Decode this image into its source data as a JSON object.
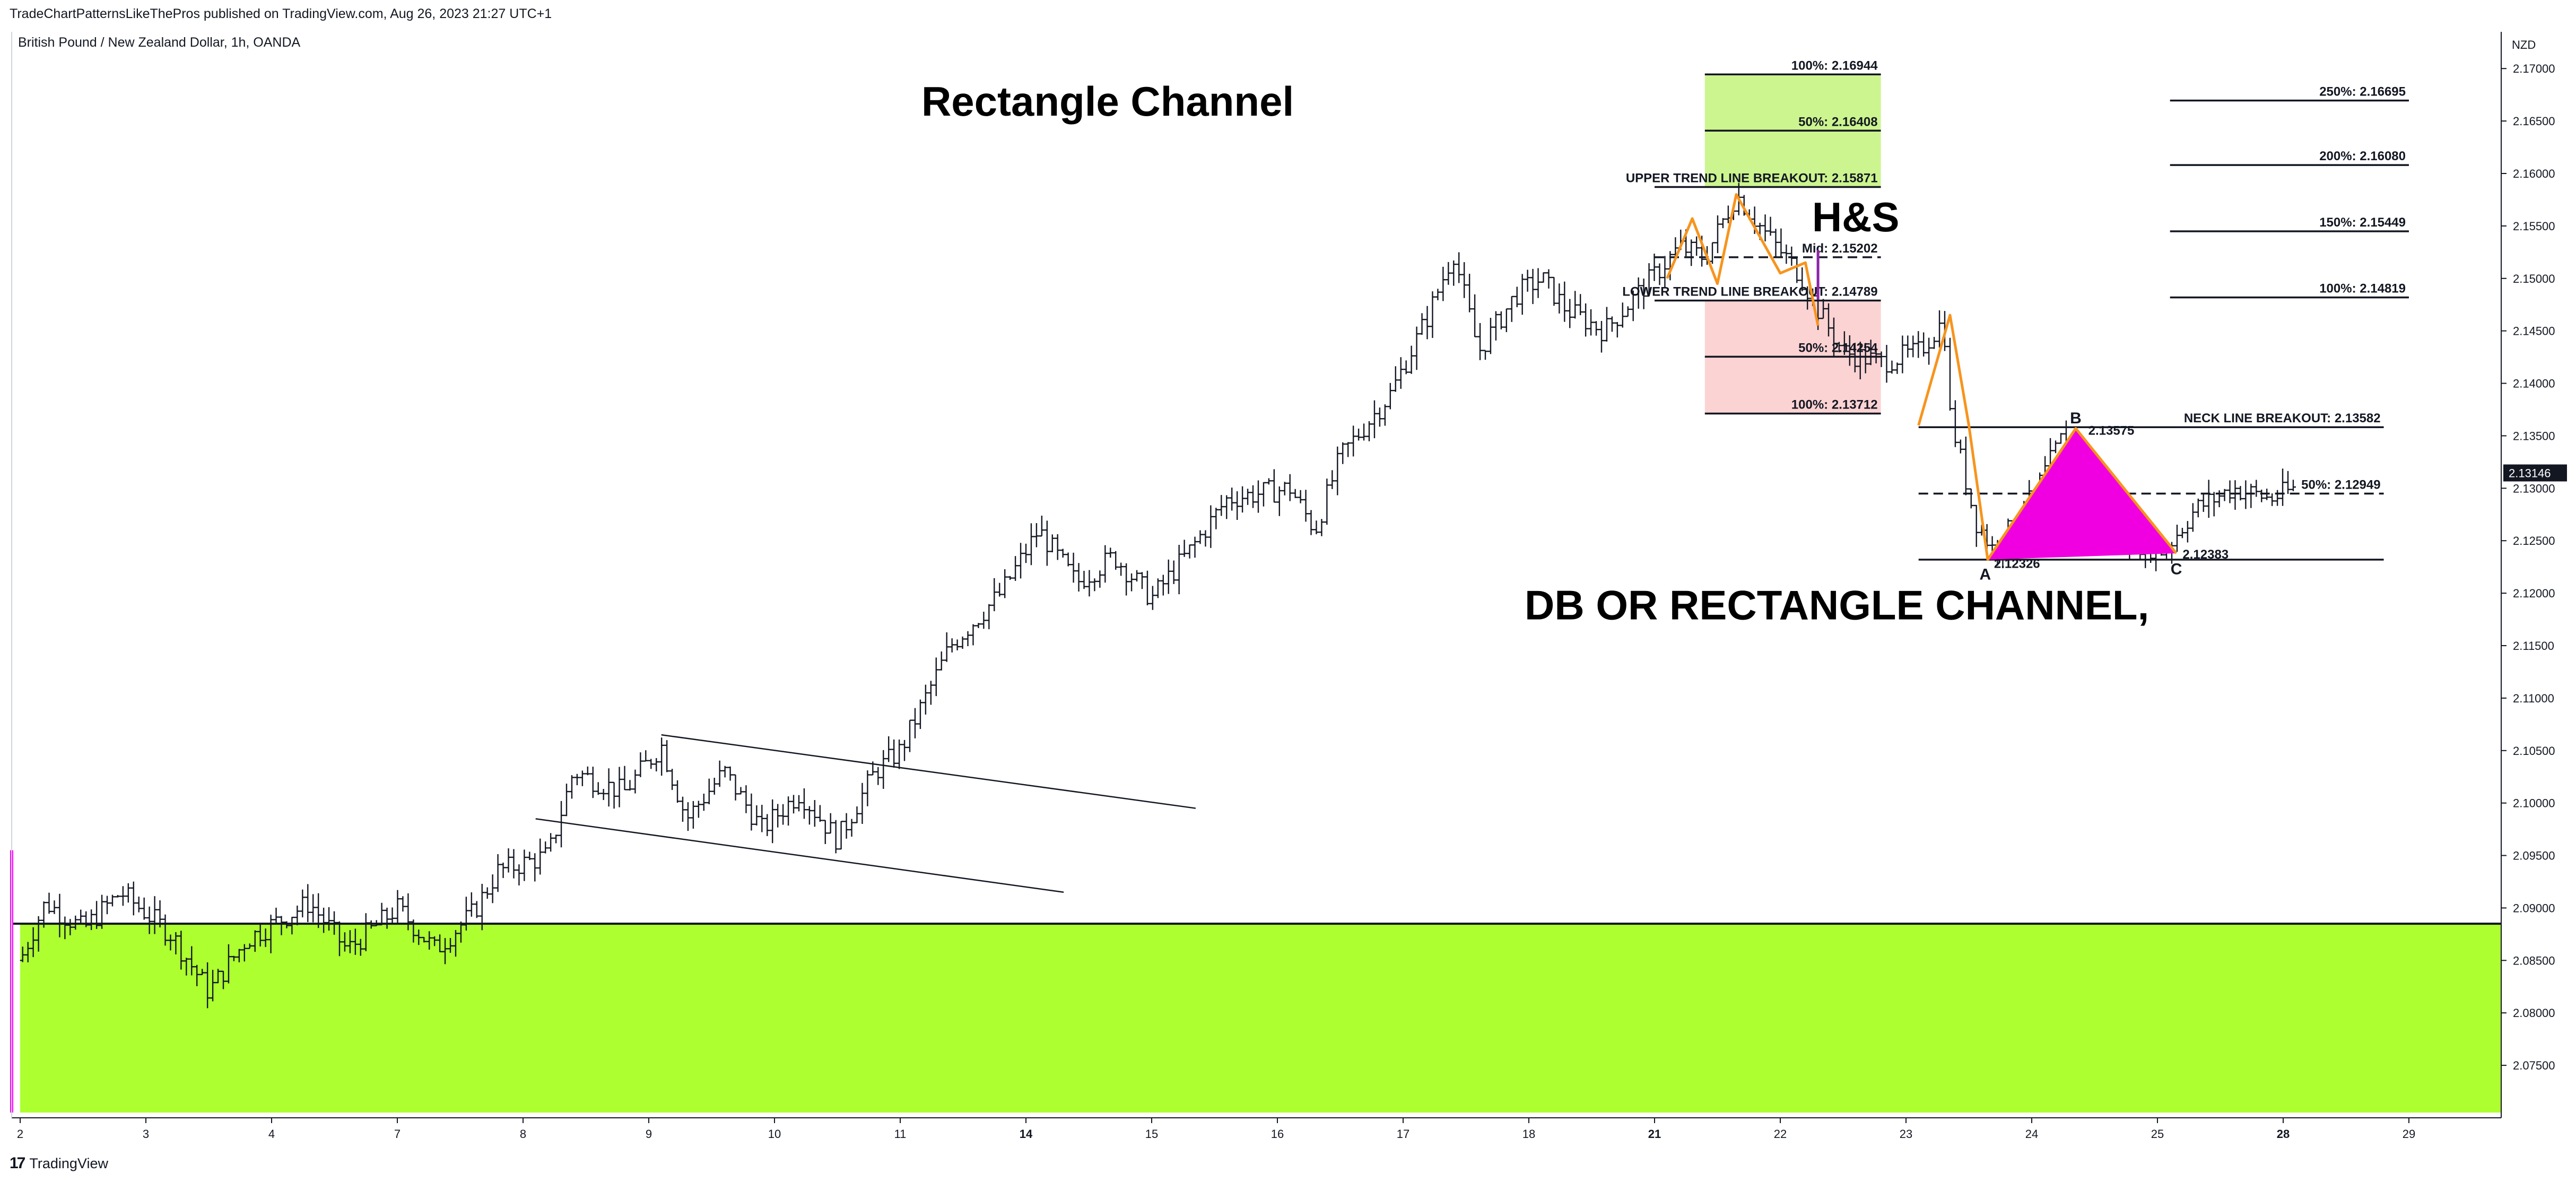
{
  "header": {
    "attribution": "TradeChartPatternsLikeThePros published on TradingView.com, Aug 26, 2023 21:27 UTC+1",
    "symbol": "British Pound / New Zealand Dollar, 1h, OANDA",
    "footer_brand": "TradingView",
    "currency": "NZD",
    "last_price": "2.13146"
  },
  "colors": {
    "support_zone": "#adff2f",
    "target_zone": "#ccf58f",
    "stop_zone": "#fcd3d3",
    "pattern_line": "#f7941d",
    "triangle_fill": "#f000e0",
    "marker": "#ff00ff",
    "candles": "#131722"
  },
  "chart_data": {
    "type": "ohlc",
    "title": "",
    "y_axis": {
      "min": 2.07,
      "max": 2.1735,
      "ticks": [
        "2.17000",
        "2.16500",
        "2.16000",
        "2.15500",
        "2.15000",
        "2.14500",
        "2.14000",
        "2.13500",
        "2.13000",
        "2.12500",
        "2.12000",
        "2.11500",
        "2.11000",
        "2.10500",
        "2.10000",
        "2.09500",
        "2.09000",
        "2.08500",
        "2.08000",
        "2.07500"
      ]
    },
    "x_axis": {
      "ticks": [
        {
          "label": "2",
          "d": 0
        },
        {
          "label": "3",
          "d": 1
        },
        {
          "label": "4",
          "d": 2
        },
        {
          "label": "7",
          "d": 3
        },
        {
          "label": "8",
          "d": 4
        },
        {
          "label": "9",
          "d": 5
        },
        {
          "label": "10",
          "d": 6
        },
        {
          "label": "11",
          "d": 7
        },
        {
          "label": "14",
          "d": 8
        },
        {
          "label": "15",
          "d": 9
        },
        {
          "label": "16",
          "d": 10
        },
        {
          "label": "17",
          "d": 11
        },
        {
          "label": "18",
          "d": 12
        },
        {
          "label": "21",
          "d": 13
        },
        {
          "label": "22",
          "d": 14
        },
        {
          "label": "23",
          "d": 15
        },
        {
          "label": "24",
          "d": 16
        },
        {
          "label": "25",
          "d": 17
        },
        {
          "label": "28",
          "d": 18
        },
        {
          "label": "29",
          "d": 19
        }
      ],
      "bold": [
        "14",
        "21",
        "28"
      ]
    },
    "price_path": [
      [
        0.0,
        2.085
      ],
      [
        0.2,
        2.0905
      ],
      [
        0.5,
        2.088
      ],
      [
        0.8,
        2.0915
      ],
      [
        1.2,
        2.0875
      ],
      [
        1.5,
        2.082
      ],
      [
        1.8,
        2.087
      ],
      [
        2.3,
        2.0905
      ],
      [
        2.6,
        2.086
      ],
      [
        3.0,
        2.09
      ],
      [
        3.3,
        2.086
      ],
      [
        3.6,
        2.0895
      ],
      [
        3.8,
        2.0935
      ],
      [
        4.2,
        2.095
      ],
      [
        4.4,
        2.103
      ],
      [
        4.8,
        2.101
      ],
      [
        5.1,
        2.1055
      ],
      [
        5.3,
        2.0985
      ],
      [
        5.6,
        2.103
      ],
      [
        5.9,
        2.0975
      ],
      [
        6.2,
        2.101
      ],
      [
        6.5,
        2.0965
      ],
      [
        6.8,
        2.103
      ],
      [
        7.0,
        2.105
      ],
      [
        7.4,
        2.115
      ],
      [
        7.8,
        2.12
      ],
      [
        8.1,
        2.126
      ],
      [
        8.4,
        2.121
      ],
      [
        8.7,
        2.1235
      ],
      [
        9.0,
        2.1195
      ],
      [
        9.3,
        2.124
      ],
      [
        9.6,
        2.129
      ],
      [
        10.1,
        2.13
      ],
      [
        10.3,
        2.126
      ],
      [
        10.5,
        2.133
      ],
      [
        10.9,
        2.139
      ],
      [
        11.2,
        2.1465
      ],
      [
        11.4,
        2.1525
      ],
      [
        11.6,
        2.143
      ],
      [
        11.9,
        2.1485
      ],
      [
        12.1,
        2.15
      ],
      [
        12.3,
        2.147
      ],
      [
        12.6,
        2.145
      ],
      [
        12.9,
        2.149
      ],
      [
        13.2,
        2.153
      ],
      [
        13.4,
        2.152
      ],
      [
        13.65,
        2.158
      ],
      [
        13.9,
        2.154
      ],
      [
        14.15,
        2.1505
      ],
      [
        14.3,
        2.147
      ],
      [
        14.5,
        2.143
      ],
      [
        14.8,
        2.142
      ],
      [
        15.1,
        2.143
      ],
      [
        15.3,
        2.146
      ],
      [
        15.35,
        2.137
      ],
      [
        15.55,
        2.127
      ],
      [
        15.7,
        2.124
      ],
      [
        16.0,
        2.129
      ],
      [
        16.25,
        2.135
      ],
      [
        16.5,
        2.13
      ],
      [
        16.8,
        2.125
      ],
      [
        17.05,
        2.124
      ],
      [
        17.3,
        2.128
      ],
      [
        17.6,
        2.13
      ],
      [
        17.9,
        2.129
      ],
      [
        18.1,
        2.13
      ]
    ],
    "levels": [
      {
        "label": "100%: 2.16944",
        "price": 2.16944,
        "d0": 13.4,
        "d1": 14.8
      },
      {
        "label": "50%: 2.16408",
        "price": 2.16408,
        "d0": 13.4,
        "d1": 14.8
      },
      {
        "label": "UPPER TREND LINE BREAKOUT: 2.15871",
        "price": 2.15871,
        "d0": 13.0,
        "d1": 14.8
      },
      {
        "label": "Mid: 2.15202",
        "price": 2.15202,
        "d0": 13.0,
        "d1": 14.8,
        "dashed": true
      },
      {
        "label": "LOWER TREND LINE BREAKOUT: 2.14789",
        "price": 2.14789,
        "d0": 13.0,
        "d1": 14.8
      },
      {
        "label": "50%: 2.14254",
        "price": 2.14254,
        "d0": 13.4,
        "d1": 14.8
      },
      {
        "label": "100%: 2.13712",
        "price": 2.13712,
        "d0": 13.4,
        "d1": 14.8
      },
      {
        "label": "250%: 2.16695",
        "price": 2.16695,
        "d0": 17.1,
        "d1": 19.0
      },
      {
        "label": "200%: 2.16080",
        "price": 2.1608,
        "d0": 17.1,
        "d1": 19.0
      },
      {
        "label": "150%: 2.15449",
        "price": 2.15449,
        "d0": 17.1,
        "d1": 19.0
      },
      {
        "label": "100%: 2.14819",
        "price": 2.14819,
        "d0": 17.1,
        "d1": 19.0
      },
      {
        "label": "NECK LINE BREAKOUT: 2.13582",
        "price": 2.13582,
        "d0": 15.1,
        "d1": 18.8
      },
      {
        "label": "50%: 2.12949",
        "price": 2.12949,
        "d0": 15.1,
        "d1": 18.8,
        "dashed": true
      },
      {
        "label": "",
        "price": 2.1232,
        "d0": 15.1,
        "d1": 18.8
      }
    ],
    "zones": [
      {
        "name": "support",
        "price_top": 2.0885,
        "price_bottom": 2.0705,
        "d0": 0,
        "d1": 19.75
      },
      {
        "name": "target",
        "price_top": 2.16944,
        "price_bottom": 2.15871,
        "d0": 13.4,
        "d1": 14.8
      },
      {
        "name": "stop",
        "price_top": 2.14789,
        "price_bottom": 2.13712,
        "d0": 13.4,
        "d1": 14.8
      }
    ],
    "trendlines": [
      [
        [
          4.1,
          2.0985
        ],
        [
          8.3,
          2.0915
        ]
      ],
      [
        [
          5.1,
          2.1065
        ],
        [
          9.35,
          2.0995
        ]
      ]
    ],
    "hs_pattern": [
      [
        13.1,
        2.15
      ],
      [
        13.3,
        2.1557
      ],
      [
        13.5,
        2.1495
      ],
      [
        13.65,
        2.158
      ],
      [
        14.0,
        2.1505
      ],
      [
        14.2,
        2.1515
      ],
      [
        14.3,
        2.1455
      ]
    ],
    "wedge_pattern": [
      [
        15.1,
        2.136
      ],
      [
        15.35,
        2.1465
      ],
      [
        15.5,
        2.136
      ],
      [
        15.65,
        2.1232
      ],
      [
        16.35,
        2.1357
      ],
      [
        17.15,
        2.1238
      ]
    ],
    "triangle": [
      [
        15.65,
        2.1232
      ],
      [
        16.35,
        2.1357
      ],
      [
        17.15,
        2.1238
      ]
    ],
    "points": [
      {
        "label": "A",
        "d": 15.63,
        "price": 2.1218
      },
      {
        "label": "B",
        "d": 16.35,
        "price": 2.1367
      },
      {
        "label": "C",
        "d": 17.15,
        "price": 2.1223
      }
    ],
    "point_values": [
      {
        "label": "2.12326",
        "d": 15.7,
        "price": 2.1228
      },
      {
        "label": "2.13575",
        "d": 16.45,
        "price": 2.1355
      },
      {
        "label": "2.12383",
        "d": 17.2,
        "price": 2.1237
      }
    ],
    "annotations": [
      {
        "text": "Rectangle Channel",
        "d": 8.65,
        "price": 2.1655,
        "size": 78
      },
      {
        "text": "H&S",
        "d": 14.6,
        "price": 2.1545,
        "size": 78
      },
      {
        "text": "DB OR RECTANGLE CHANNEL,",
        "d": 14.45,
        "price": 2.1175,
        "size": 78
      }
    ]
  }
}
